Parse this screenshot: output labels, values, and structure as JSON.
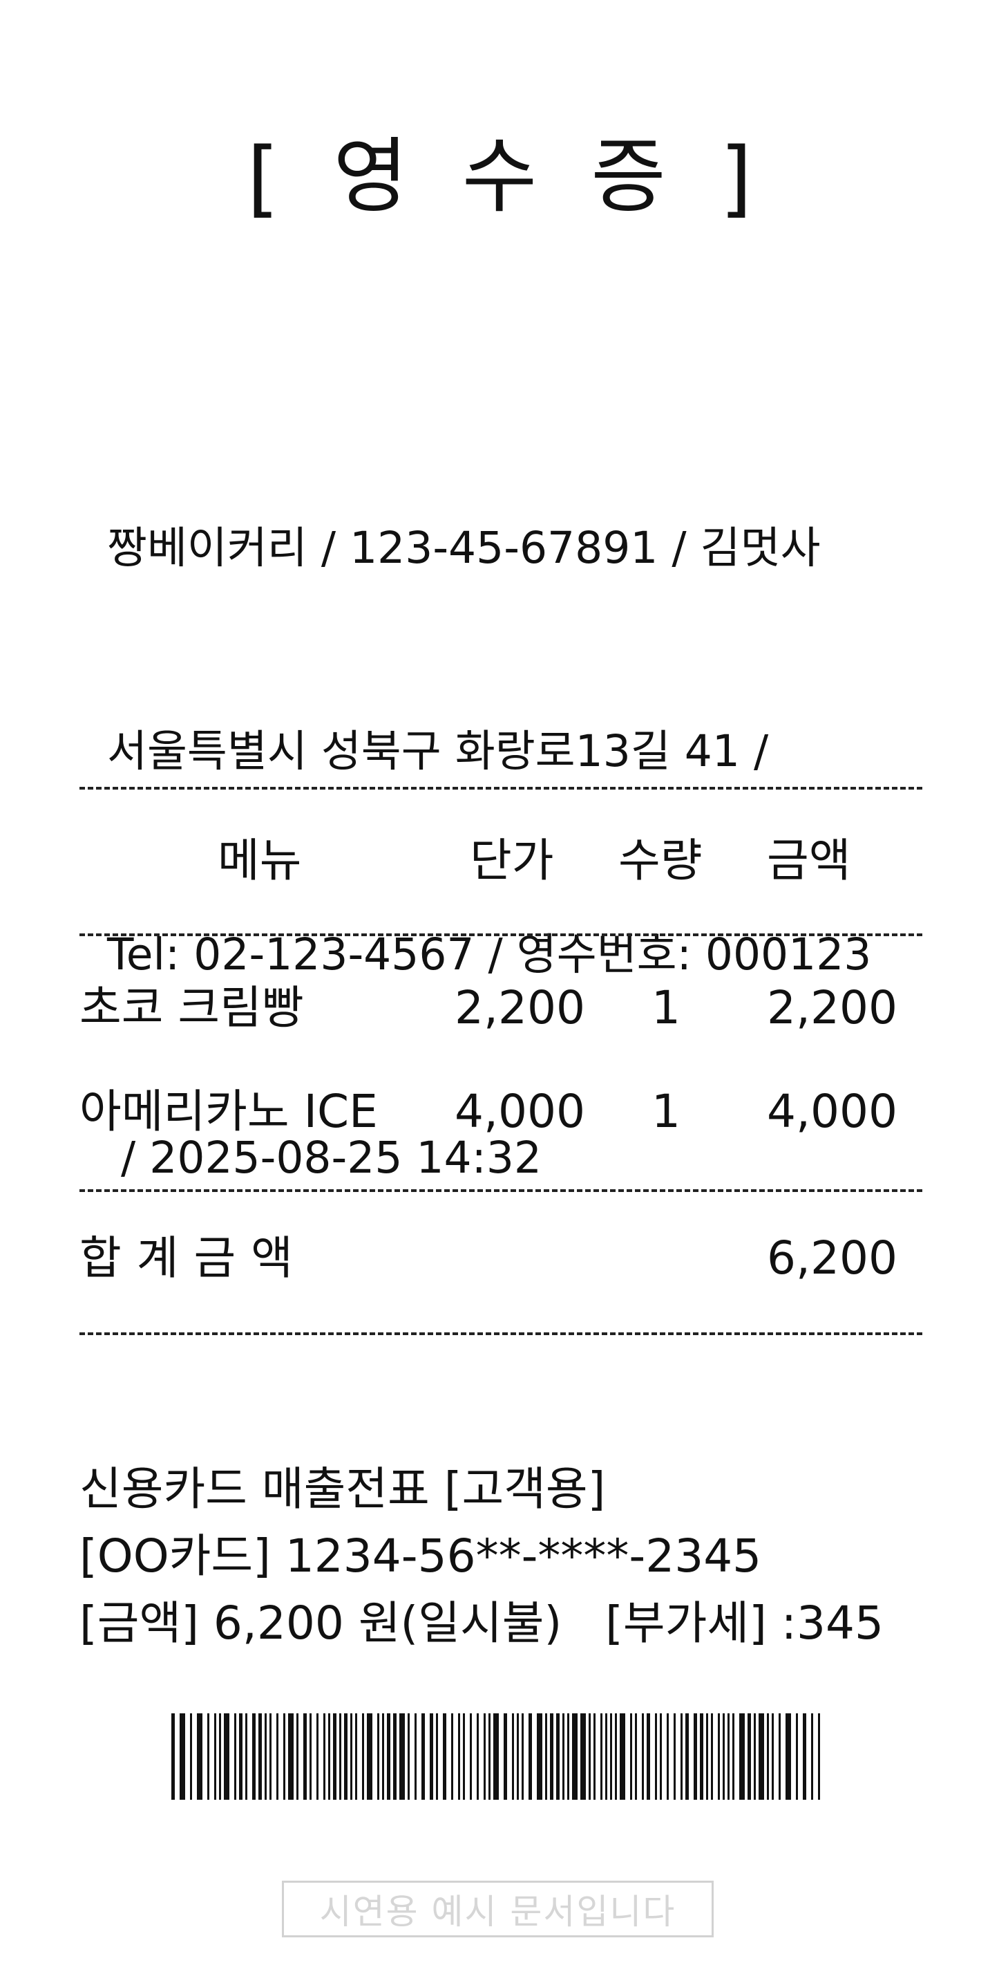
{
  "receipt": {
    "title_chars": [
      "[",
      "영",
      "수",
      "증",
      "]"
    ],
    "header_lines": [
      "짱베이커리 / 123-45-67891 / 김멋사",
      "서울특별시 성북구 화랑로13길 41 /",
      "Tel: 02-123-4567 / 영수번호: 000123",
      " / 2025-08-25 14:32"
    ],
    "columns": {
      "menu": "메뉴",
      "price": "단가",
      "qty": "수량",
      "amount": "금액"
    },
    "items": [
      {
        "name": "초코 크림빵",
        "price": "2,200",
        "qty": "1",
        "amount": "2,200"
      },
      {
        "name": "아메리카노 ICE",
        "price": "4,000",
        "qty": "1",
        "amount": "4,000"
      }
    ],
    "total": {
      "label": "합계금액",
      "amount": "6,200"
    },
    "payment_lines": [
      "신용카드 매출전표 [고객용]",
      "[OO카드] 1234-56**-****-2345",
      "[금액] 6,200 원(일시불)   [부가세] :345"
    ],
    "stamp_text": "시연용 예시 문서입니다"
  }
}
